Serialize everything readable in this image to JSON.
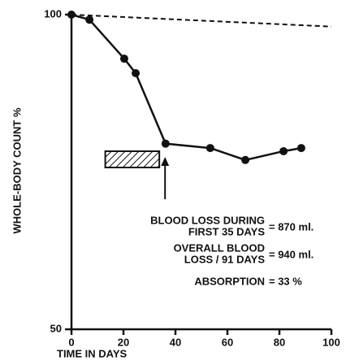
{
  "chart_data": {
    "type": "line",
    "y_axis_label": "WHOLE-BODY COUNT %",
    "x_axis_label": "TIME IN DAYS",
    "x": [
      0,
      6.9,
      20.3,
      24.7,
      36.2,
      53.4,
      66.9,
      81.6,
      88.4
    ],
    "series": [
      {
        "color": "#111111",
        "values": [
          100,
          99.2,
          93.0,
          90.7,
          79.5,
          78.8,
          76.9,
          78.3,
          78.8
        ]
      }
    ],
    "reference_line": {
      "x": [
        0,
        100
      ],
      "values": [
        100,
        98.1
      ],
      "dashed": true,
      "color": "#111111"
    },
    "hatched_period": [
      13,
      33.8
    ],
    "arrow_x": 36,
    "xlim": [
      0,
      100
    ],
    "xticks": [
      0,
      20,
      40,
      60,
      80,
      100
    ],
    "ylim": [
      50,
      100
    ],
    "yticks": [
      50,
      100
    ],
    "annotations": [
      {
        "lines": [
          "BLOOD LOSS DURING",
          "FIRST 35 DAYS"
        ],
        "value": "= 870 ml."
      },
      {
        "lines": [
          "OVERALL BLOOD",
          "LOSS / 91 DAYS"
        ],
        "value": "= 940 ml."
      },
      {
        "lines": [
          "ABSORPTION"
        ],
        "value": "= 33 %"
      }
    ]
  }
}
